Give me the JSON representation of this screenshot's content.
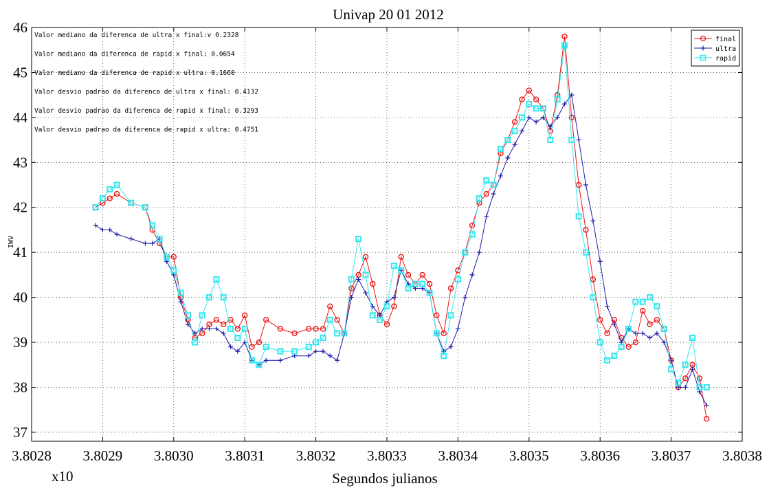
{
  "chart_data": {
    "type": "line",
    "title": "Univap 20 01 2012",
    "xlabel": "Segundos julianos",
    "ylabel": "IWV",
    "x_multiplier_label": "x10",
    "xlim": [
      3.8028,
      3.8038
    ],
    "ylim": [
      36.8,
      46.0
    ],
    "xticks": [
      "3.8028",
      "3.8029",
      "3.8030",
      "3.8031",
      "3.8032",
      "3.8033",
      "3.8034",
      "3.8035",
      "3.8036",
      "3.8037",
      "3.8038"
    ],
    "yticks": [
      "37",
      "38",
      "39",
      "40",
      "41",
      "42",
      "43",
      "44",
      "45",
      "46"
    ],
    "grid": true,
    "legend_position": "top-right",
    "annotations": [
      "Valor mediano da diferenca de ultra x final:v 0.2328",
      "Valor mediano da diferenca de rapid x final: 0.0654",
      "Valor mediano da diferenca de rapid x ultra:  0.1660",
      "Valor desvio padrao da diferenca de ultra x final: 0.4132",
      "Valor desvio padrao da diferenca de rapid x final: 0.3293",
      "Valor desvio padrao da diferenca de rapid x ultra: 0.4751"
    ],
    "series": [
      {
        "name": "final",
        "color": "#ee1111",
        "marker": "circle",
        "x": [
          3.80289,
          3.8029,
          3.80291,
          3.80292,
          3.80294,
          3.80296,
          3.80297,
          3.80298,
          3.80299,
          3.803,
          3.80301,
          3.80302,
          3.80303,
          3.80304,
          3.80305,
          3.80306,
          3.80307,
          3.80308,
          3.80309,
          3.8031,
          3.80311,
          3.80312,
          3.80313,
          3.80315,
          3.80317,
          3.80319,
          3.8032,
          3.80321,
          3.80322,
          3.80323,
          3.80324,
          3.80325,
          3.80326,
          3.80327,
          3.80328,
          3.80329,
          3.8033,
          3.80331,
          3.80332,
          3.80333,
          3.80334,
          3.80335,
          3.80336,
          3.80337,
          3.80338,
          3.80339,
          3.8034,
          3.80341,
          3.80342,
          3.80343,
          3.80344,
          3.80345,
          3.80346,
          3.80347,
          3.80348,
          3.80349,
          3.8035,
          3.80351,
          3.80352,
          3.80353,
          3.80354,
          3.80355,
          3.80356,
          3.80357,
          3.80358,
          3.80359,
          3.8036,
          3.80361,
          3.80362,
          3.80363,
          3.80364,
          3.80365,
          3.80366,
          3.80367,
          3.80368,
          3.80369,
          3.8037,
          3.80371,
          3.80372,
          3.80373,
          3.80374,
          3.80375
        ],
        "values": [
          42.0,
          42.1,
          42.2,
          42.3,
          42.1,
          42.0,
          41.5,
          41.2,
          40.9,
          40.9,
          40.0,
          39.5,
          39.1,
          39.2,
          39.4,
          39.5,
          39.4,
          39.5,
          39.3,
          39.6,
          38.9,
          39.0,
          39.5,
          39.3,
          39.2,
          39.3,
          39.3,
          39.3,
          39.8,
          39.5,
          39.2,
          40.2,
          40.5,
          40.9,
          40.3,
          39.6,
          39.4,
          39.8,
          40.9,
          40.5,
          40.3,
          40.5,
          40.3,
          39.6,
          39.2,
          40.2,
          40.6,
          41.0,
          41.6,
          42.1,
          42.3,
          42.5,
          43.2,
          43.5,
          43.9,
          44.4,
          44.6,
          44.4,
          44.2,
          43.7,
          44.5,
          45.8,
          44.0,
          42.5,
          41.5,
          40.4,
          39.5,
          39.2,
          39.5,
          39.1,
          38.9,
          39.0,
          39.7,
          39.4,
          39.5,
          39.3,
          38.6,
          38.0,
          38.2,
          38.5,
          38.2,
          37.3
        ]
      },
      {
        "name": "ultra",
        "color": "#1a1aa8",
        "marker": "plus",
        "x": [
          3.80289,
          3.8029,
          3.80291,
          3.80292,
          3.80294,
          3.80296,
          3.80297,
          3.80298,
          3.80299,
          3.803,
          3.80301,
          3.80302,
          3.80303,
          3.80304,
          3.80305,
          3.80306,
          3.80307,
          3.80308,
          3.80309,
          3.8031,
          3.80311,
          3.80312,
          3.80313,
          3.80315,
          3.80317,
          3.80319,
          3.8032,
          3.80321,
          3.80322,
          3.80323,
          3.80324,
          3.80325,
          3.80326,
          3.80327,
          3.80328,
          3.80329,
          3.8033,
          3.80331,
          3.80332,
          3.80333,
          3.80334,
          3.80335,
          3.80336,
          3.80337,
          3.80338,
          3.80339,
          3.8034,
          3.80341,
          3.80342,
          3.80343,
          3.80344,
          3.80345,
          3.80346,
          3.80347,
          3.80348,
          3.80349,
          3.8035,
          3.80351,
          3.80352,
          3.80353,
          3.80354,
          3.80355,
          3.80356,
          3.80357,
          3.80358,
          3.80359,
          3.8036,
          3.80361,
          3.80362,
          3.80363,
          3.80364,
          3.80365,
          3.80366,
          3.80367,
          3.80368,
          3.80369,
          3.8037,
          3.80371,
          3.80372,
          3.80373,
          3.80374,
          3.80375
        ],
        "values": [
          41.6,
          41.5,
          41.5,
          41.4,
          41.3,
          41.2,
          41.2,
          41.3,
          40.8,
          40.5,
          39.9,
          39.4,
          39.2,
          39.3,
          39.3,
          39.3,
          39.2,
          38.9,
          38.8,
          39.0,
          38.6,
          38.5,
          38.6,
          38.6,
          38.7,
          38.7,
          38.8,
          38.8,
          38.7,
          38.6,
          39.2,
          40.0,
          40.4,
          40.1,
          39.8,
          39.6,
          39.9,
          40.0,
          40.6,
          40.3,
          40.2,
          40.2,
          40.1,
          39.2,
          38.8,
          38.9,
          39.3,
          40.0,
          40.5,
          41.0,
          41.8,
          42.3,
          42.7,
          43.1,
          43.4,
          43.7,
          44.0,
          43.9,
          44.0,
          43.8,
          44.0,
          44.3,
          44.5,
          43.5,
          42.5,
          41.7,
          40.8,
          39.8,
          39.4,
          39.0,
          39.3,
          39.2,
          39.2,
          39.1,
          39.2,
          39.0,
          38.6,
          38.0,
          38.0,
          38.4,
          37.9,
          37.6
        ]
      },
      {
        "name": "rapid",
        "color": "#33e6ee",
        "marker": "square",
        "x": [
          3.80289,
          3.8029,
          3.80291,
          3.80292,
          3.80294,
          3.80296,
          3.80297,
          3.80298,
          3.80299,
          3.803,
          3.80301,
          3.80302,
          3.80303,
          3.80304,
          3.80305,
          3.80306,
          3.80307,
          3.80308,
          3.80309,
          3.8031,
          3.80311,
          3.80312,
          3.80313,
          3.80315,
          3.80317,
          3.80319,
          3.8032,
          3.80321,
          3.80322,
          3.80323,
          3.80324,
          3.80325,
          3.80326,
          3.80327,
          3.80328,
          3.80329,
          3.8033,
          3.80331,
          3.80332,
          3.80333,
          3.80334,
          3.80335,
          3.80336,
          3.80337,
          3.80338,
          3.80339,
          3.8034,
          3.80341,
          3.80342,
          3.80343,
          3.80344,
          3.80345,
          3.80346,
          3.80347,
          3.80348,
          3.80349,
          3.8035,
          3.80351,
          3.80352,
          3.80353,
          3.80354,
          3.80355,
          3.80356,
          3.80357,
          3.80358,
          3.80359,
          3.8036,
          3.80361,
          3.80362,
          3.80363,
          3.80364,
          3.80365,
          3.80366,
          3.80367,
          3.80368,
          3.80369,
          3.8037,
          3.80371,
          3.80372,
          3.80373,
          3.80374,
          3.80375
        ],
        "values": [
          42.0,
          42.2,
          42.4,
          42.5,
          42.1,
          42.0,
          41.6,
          41.3,
          40.9,
          40.6,
          40.1,
          39.6,
          39.0,
          39.6,
          40.0,
          40.4,
          40.0,
          39.3,
          39.1,
          39.3,
          38.6,
          38.5,
          38.9,
          38.8,
          38.8,
          38.9,
          39.0,
          39.1,
          39.5,
          39.2,
          39.2,
          40.4,
          41.3,
          40.5,
          39.6,
          39.5,
          39.8,
          40.7,
          40.6,
          40.2,
          40.3,
          40.3,
          40.1,
          39.2,
          38.7,
          39.6,
          40.4,
          41.0,
          41.4,
          42.2,
          42.6,
          42.5,
          43.3,
          43.5,
          43.7,
          44.0,
          44.3,
          44.2,
          44.2,
          43.5,
          44.4,
          45.6,
          43.5,
          41.8,
          41.0,
          40.0,
          39.0,
          38.6,
          38.7,
          38.9,
          39.3,
          39.9,
          39.9,
          40.0,
          39.8,
          39.3,
          38.4,
          38.1,
          38.5,
          39.1,
          38.0,
          38.0
        ]
      }
    ]
  }
}
